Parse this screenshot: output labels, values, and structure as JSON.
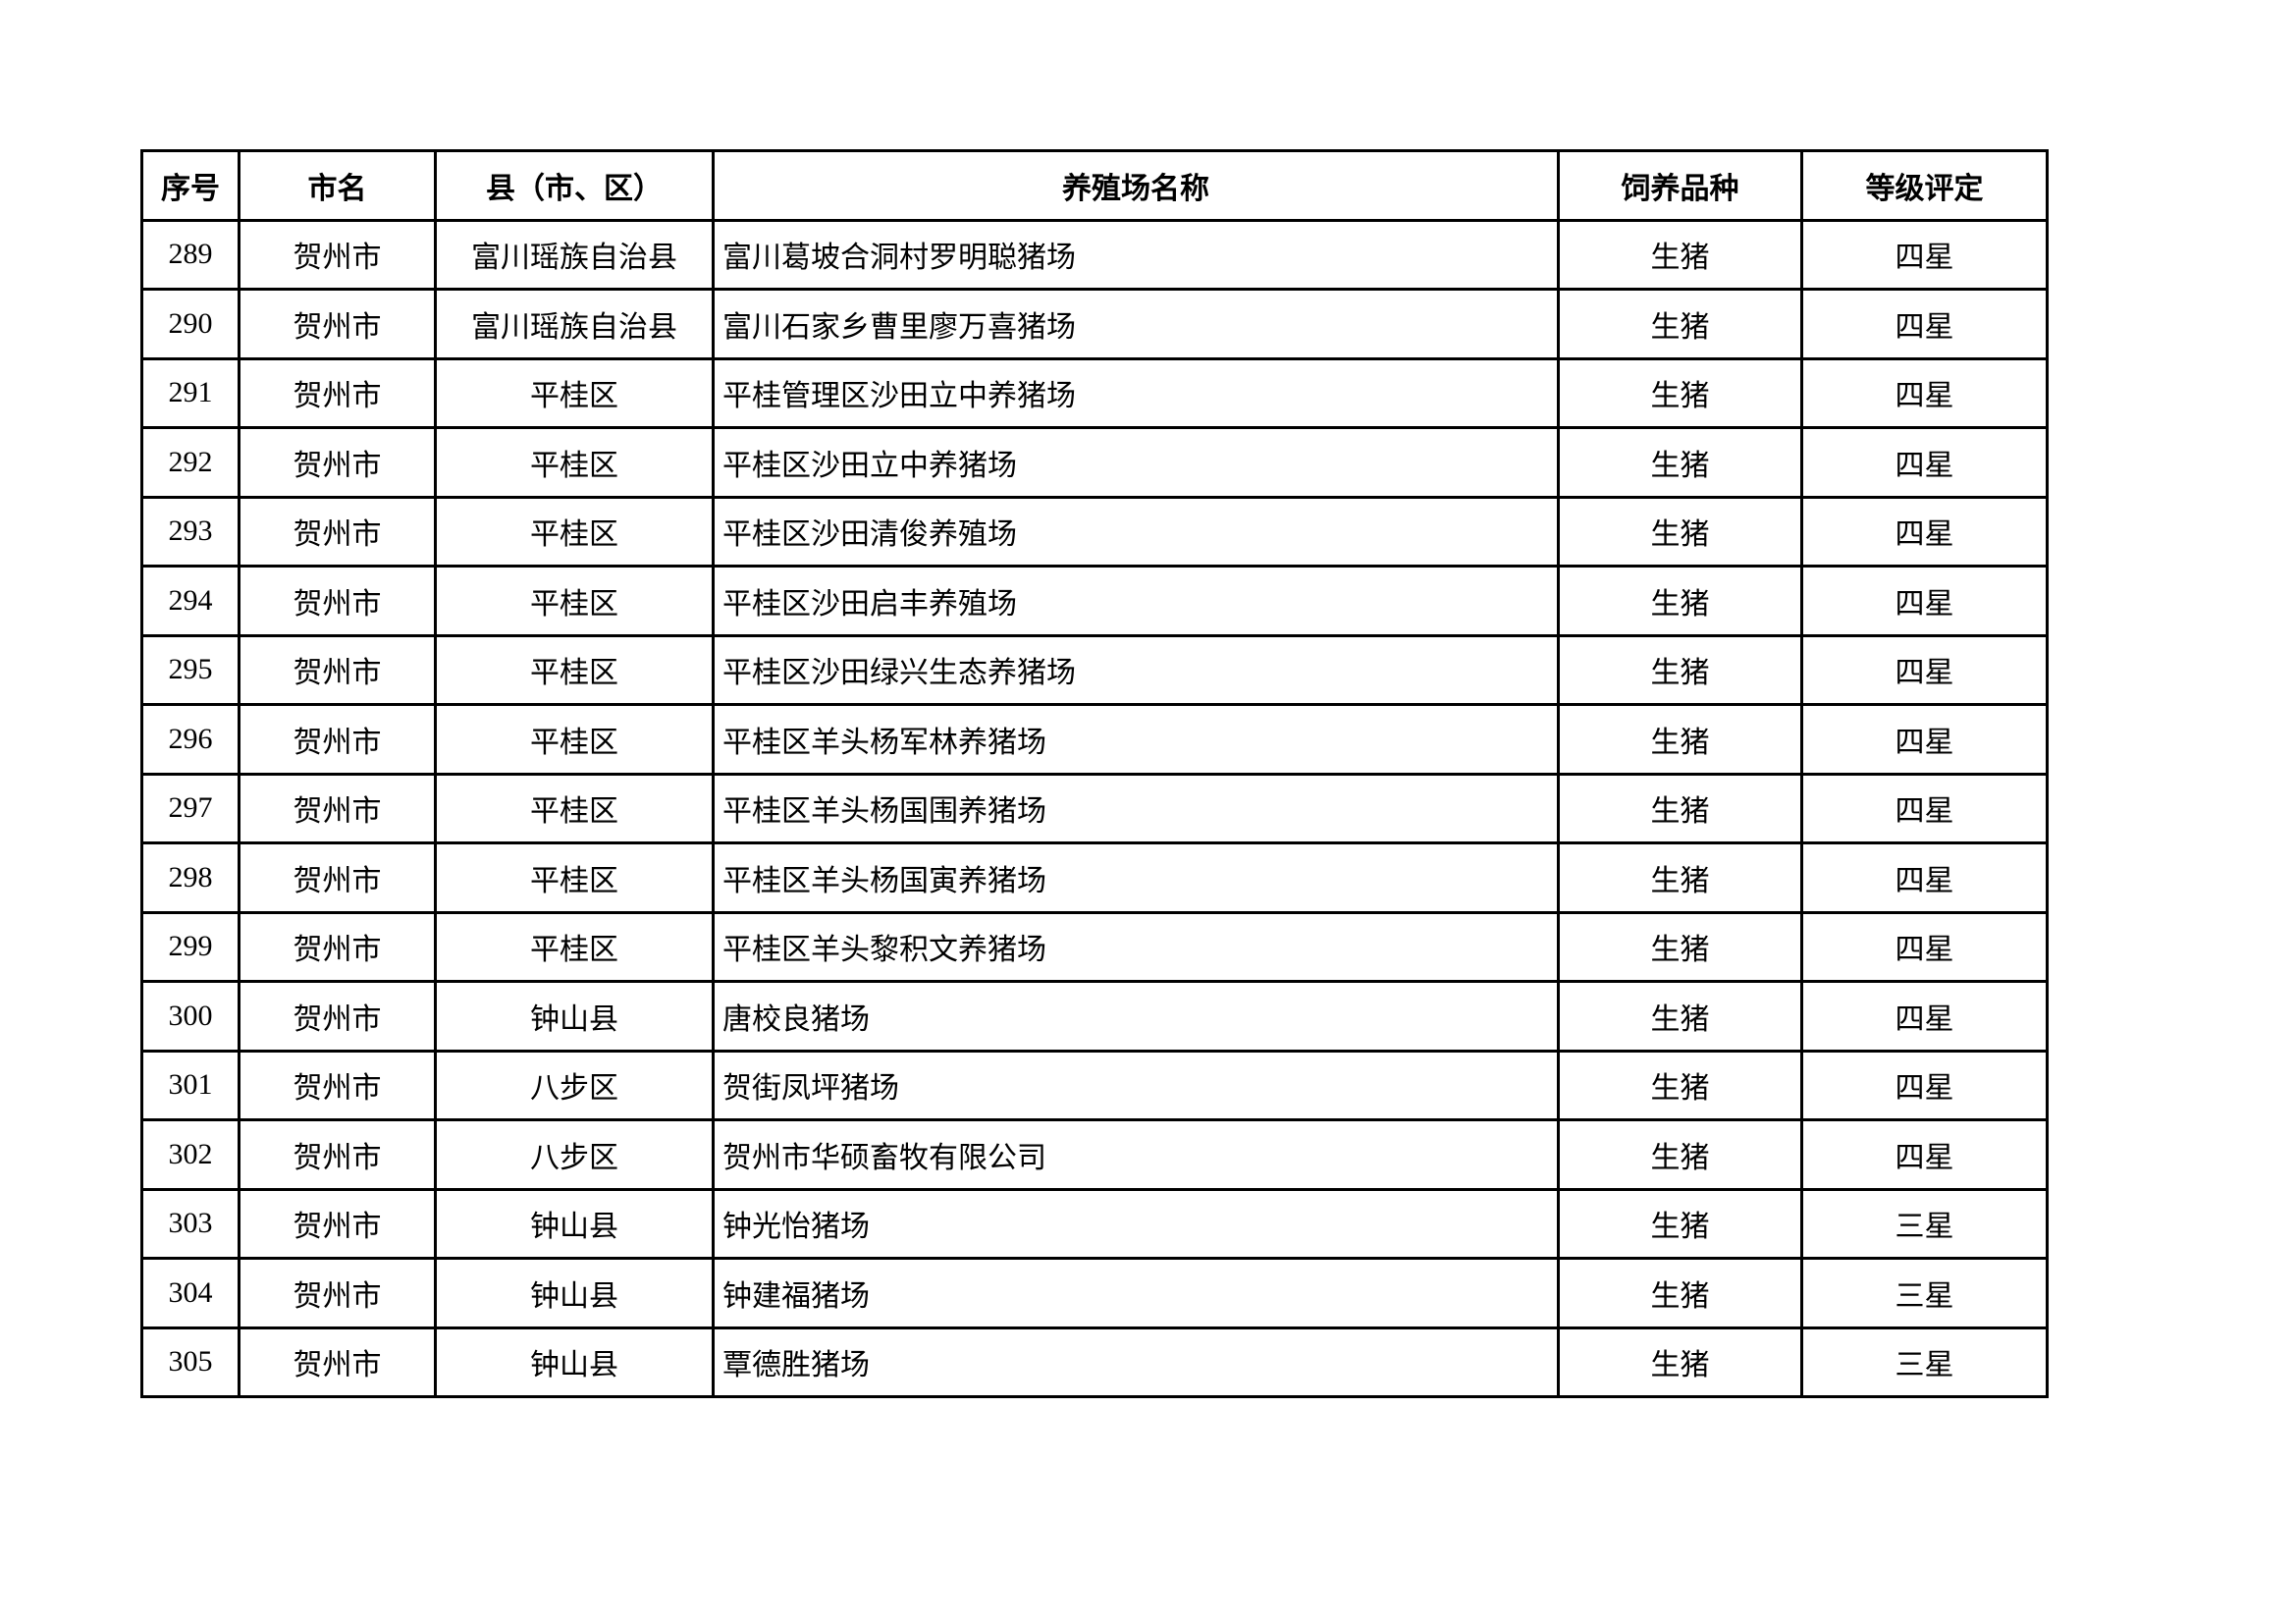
{
  "headers": [
    "序号",
    "市名",
    "县（市、区）",
    "养殖场名称",
    "饲养品种",
    "等级评定"
  ],
  "rows": [
    [
      "289",
      "贺州市",
      "富川瑶族自治县",
      "富川葛坡合洞村罗明聪猪场",
      "生猪",
      "四星"
    ],
    [
      "290",
      "贺州市",
      "富川瑶族自治县",
      "富川石家乡曹里廖万喜猪场",
      "生猪",
      "四星"
    ],
    [
      "291",
      "贺州市",
      "平桂区",
      "平桂管理区沙田立中养猪场",
      "生猪",
      "四星"
    ],
    [
      "292",
      "贺州市",
      "平桂区",
      "平桂区沙田立中养猪场",
      "生猪",
      "四星"
    ],
    [
      "293",
      "贺州市",
      "平桂区",
      "平桂区沙田清俊养殖场",
      "生猪",
      "四星"
    ],
    [
      "294",
      "贺州市",
      "平桂区",
      "平桂区沙田启丰养殖场",
      "生猪",
      "四星"
    ],
    [
      "295",
      "贺州市",
      "平桂区",
      "平桂区沙田绿兴生态养猪场",
      "生猪",
      "四星"
    ],
    [
      "296",
      "贺州市",
      "平桂区",
      "平桂区羊头杨军林养猪场",
      "生猪",
      "四星"
    ],
    [
      "297",
      "贺州市",
      "平桂区",
      "平桂区羊头杨国围养猪场",
      "生猪",
      "四星"
    ],
    [
      "298",
      "贺州市",
      "平桂区",
      "平桂区羊头杨国寅养猪场",
      "生猪",
      "四星"
    ],
    [
      "299",
      "贺州市",
      "平桂区",
      "平桂区羊头黎积文养猪场",
      "生猪",
      "四星"
    ],
    [
      "300",
      "贺州市",
      "钟山县",
      "唐校良猪场",
      "生猪",
      "四星"
    ],
    [
      "301",
      "贺州市",
      "八步区",
      "贺街凤坪猪场",
      "生猪",
      "四星"
    ],
    [
      "302",
      "贺州市",
      "八步区",
      "贺州市华硕畜牧有限公司",
      "生猪",
      "四星"
    ],
    [
      "303",
      "贺州市",
      "钟山县",
      "钟光怡猪场",
      "生猪",
      "三星"
    ],
    [
      "304",
      "贺州市",
      "钟山县",
      "钟建福猪场",
      "生猪",
      "三星"
    ],
    [
      "305",
      "贺州市",
      "钟山县",
      "覃德胜猪场",
      "生猪",
      "三星"
    ]
  ]
}
